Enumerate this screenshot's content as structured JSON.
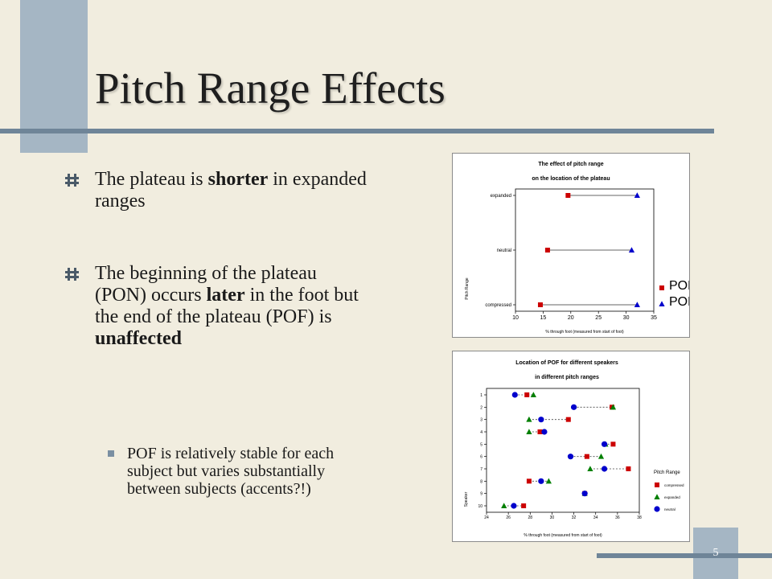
{
  "slide": {
    "title": "Pitch Range Effects",
    "page_number": "5",
    "bullets": [
      {
        "pre": "The plateau is ",
        "bold": "shorter",
        "post": " in expanded ranges"
      },
      {
        "pre": "The beginning of the plateau (PON) occurs ",
        "bold": "later",
        "mid": " in the foot but the end of the plateau (POF) is ",
        "bold2": "unaffected"
      }
    ],
    "sub_bullet": "POF is relatively stable for each subject but varies substantially between subjects (accents?!)"
  },
  "colors": {
    "red": "#cc0000",
    "green": "#007f00",
    "blue": "#0000cc"
  },
  "chart_data": [
    {
      "type": "scatter",
      "title": "The effect of pitch range",
      "subtitle": "on the location of the plateau",
      "xlabel": "% through foot (measured from start of foot)",
      "ylabel": "Pitch Range",
      "xlim": [
        10,
        35
      ],
      "xticks": [
        10,
        15,
        20,
        25,
        30,
        35
      ],
      "categories": [
        "expanded",
        "neutral",
        "compressed"
      ],
      "series": [
        {
          "name": "PON",
          "marker": "square",
          "color": "#cc0000",
          "values": [
            19.5,
            15.8,
            14.5
          ]
        },
        {
          "name": "POF",
          "marker": "triangle",
          "color": "#0000cc",
          "values": [
            32.0,
            31.0,
            32.0
          ]
        }
      ],
      "legend": "right"
    },
    {
      "type": "scatter",
      "title": "Location of POF for different speakers",
      "subtitle": "in different pitch ranges",
      "xlabel": "% through foot (measured from start of foot)",
      "ylabel": "Speaker",
      "xlim": [
        24,
        38
      ],
      "xticks": [
        24,
        26,
        28,
        30,
        32,
        34,
        36,
        38
      ],
      "categories": [
        "1",
        "2",
        "3",
        "4",
        "5",
        "6",
        "7",
        "8",
        "9",
        "10"
      ],
      "legend_title": "Pitch Range",
      "series": [
        {
          "name": "compressed",
          "marker": "square",
          "color": "#cc0000",
          "values": [
            27.7,
            35.5,
            31.5,
            28.9,
            35.6,
            33.2,
            37.0,
            27.9,
            33.0,
            27.4
          ]
        },
        {
          "name": "expanded",
          "marker": "triangle",
          "color": "#007f00",
          "values": [
            28.3,
            35.6,
            27.9,
            27.9,
            34.9,
            34.5,
            33.5,
            29.7,
            33.0,
            25.6
          ]
        },
        {
          "name": "neutral",
          "marker": "circle",
          "color": "#0000cc",
          "values": [
            26.6,
            32.0,
            29.0,
            29.3,
            34.8,
            31.7,
            34.8,
            29.0,
            33.0,
            26.5
          ]
        }
      ],
      "legend": "right"
    }
  ]
}
